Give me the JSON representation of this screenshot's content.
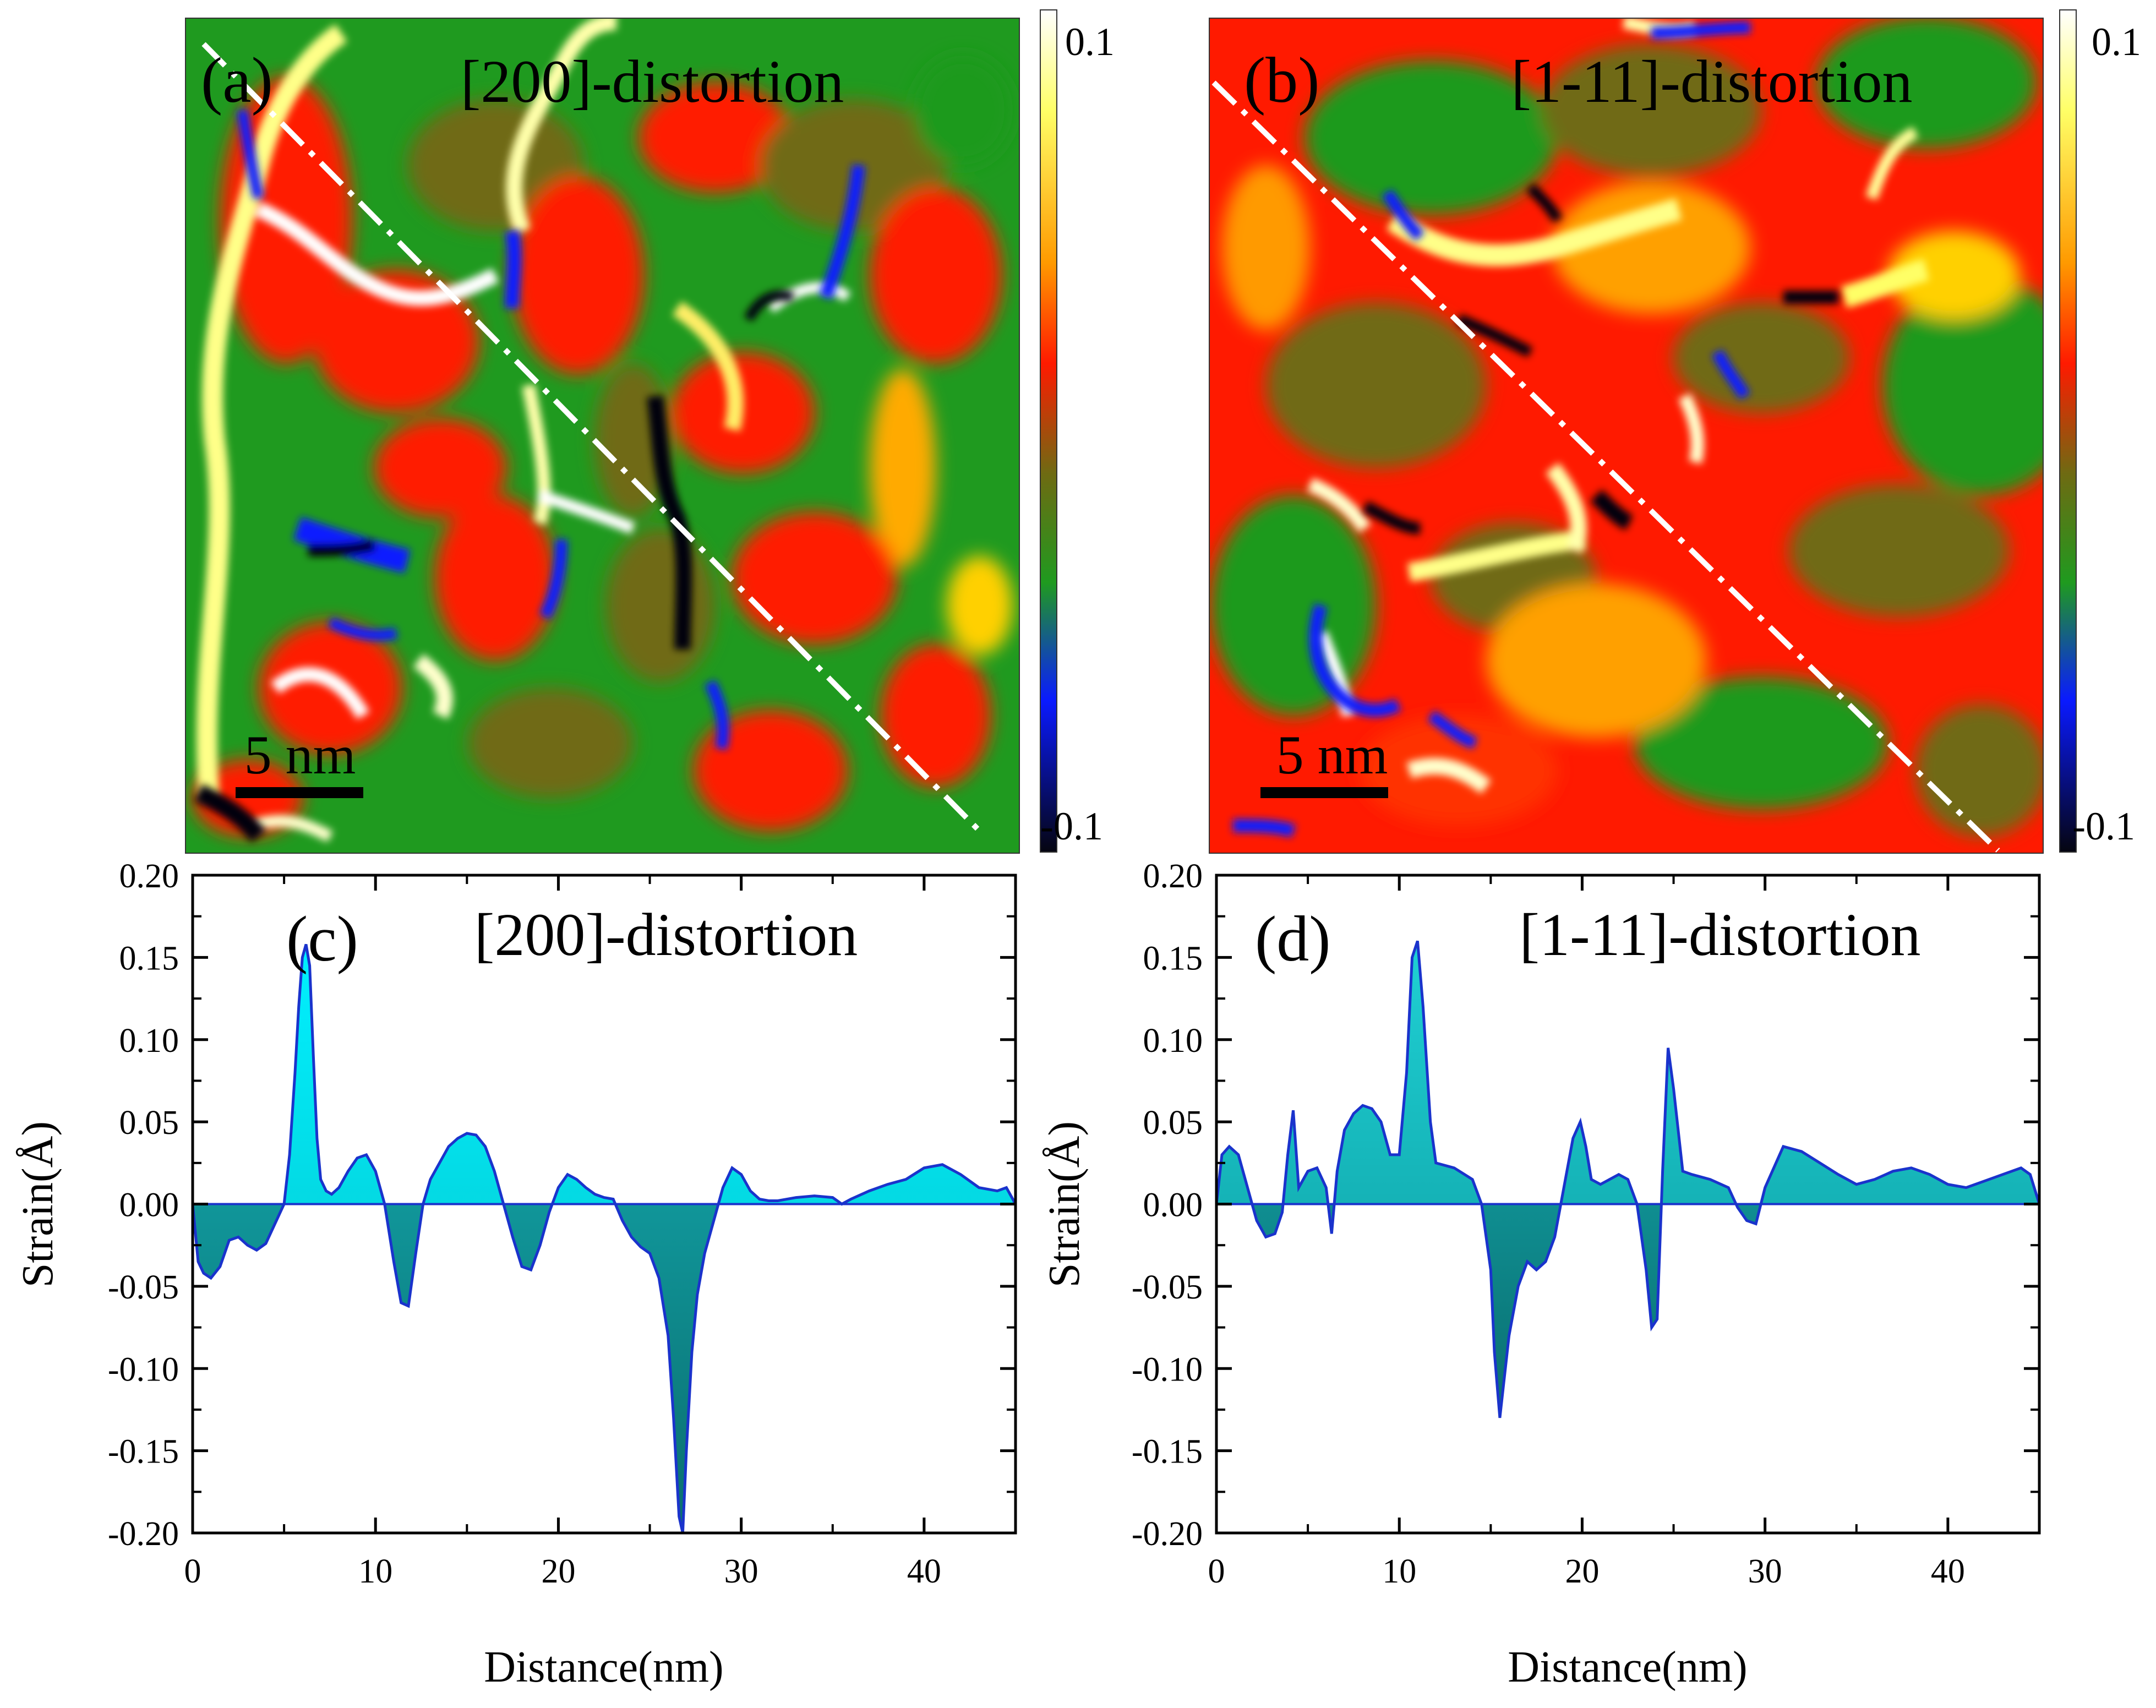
{
  "colors": {
    "map_green": "#1f9a1f",
    "map_red": "#ff1a00",
    "map_olive": "#6f6a12",
    "map_yellow": "#ffff66",
    "map_white": "#ffffff",
    "map_blue": "#0a1aff",
    "map_black": "#050510",
    "fill_cyan": "#00e0e6",
    "fill_teal": "#0e8f8f",
    "line_blue": "#1a33cc",
    "dash_line": "#ffffff"
  },
  "maps": [
    {
      "panel_label": "(a)",
      "title": "[200]-distortion",
      "scale_bar_label": "5 nm",
      "colorbar_max_label": "0.1",
      "colorbar_min_label": "-0.1"
    },
    {
      "panel_label": "(b)",
      "title": "[1-11]-distortion",
      "scale_bar_label": "5 nm",
      "colorbar_max_label": "0.1",
      "colorbar_min_label": "-0.1"
    }
  ],
  "chart_data": [
    {
      "type": "area",
      "panel_label": "(c)",
      "title": "[200]-distortion",
      "xlabel": "Distance(nm)",
      "ylabel": "Strain(Å)",
      "xlim": [
        0,
        45
      ],
      "ylim": [
        -0.2,
        0.2
      ],
      "xticks": [
        0,
        10,
        20,
        30,
        40
      ],
      "xtick_labels": [
        "0",
        "10",
        "20",
        "30",
        "40"
      ],
      "yticks": [
        -0.2,
        -0.15,
        -0.1,
        -0.05,
        0,
        0.05,
        0.1,
        0.15,
        0.2
      ],
      "ytick_labels": [
        "-0.20",
        "-0.15",
        "-0.10",
        "-0.05",
        "0.00",
        "0.05",
        "0.10",
        "0.15",
        "0.20"
      ],
      "x": [
        0,
        0.3,
        0.6,
        1.0,
        1.5,
        2.0,
        2.5,
        3.0,
        3.5,
        4.0,
        4.5,
        5.0,
        5.3,
        5.6,
        5.8,
        6.0,
        6.2,
        6.4,
        6.6,
        6.8,
        7.0,
        7.3,
        7.6,
        8.0,
        8.5,
        9.0,
        9.5,
        10.0,
        10.5,
        11.0,
        11.4,
        11.8,
        12.2,
        12.6,
        13.0,
        13.5,
        14.0,
        14.5,
        15.0,
        15.5,
        16.0,
        16.5,
        17.0,
        17.5,
        18.0,
        18.5,
        19.0,
        19.5,
        20.0,
        20.5,
        21.0,
        21.5,
        22.0,
        22.5,
        23.0,
        23.5,
        24.0,
        24.5,
        25.0,
        25.5,
        26.0,
        26.3,
        26.6,
        26.8,
        27.0,
        27.3,
        27.6,
        28.0,
        28.5,
        29.0,
        29.5,
        30.0,
        30.5,
        31.0,
        31.5,
        32.0,
        33.0,
        34.0,
        35.0,
        35.5,
        36.0,
        37.0,
        38.0,
        39.0,
        40.0,
        41.0,
        42.0,
        43.0,
        44.0,
        44.5,
        45.0
      ],
      "values": [
        0.0,
        -0.035,
        -0.042,
        -0.045,
        -0.038,
        -0.022,
        -0.02,
        -0.025,
        -0.028,
        -0.024,
        -0.012,
        0.0,
        0.03,
        0.08,
        0.12,
        0.15,
        0.158,
        0.145,
        0.09,
        0.04,
        0.015,
        0.008,
        0.006,
        0.01,
        0.02,
        0.028,
        0.03,
        0.02,
        0.0,
        -0.035,
        -0.06,
        -0.062,
        -0.03,
        0.0,
        0.015,
        0.025,
        0.035,
        0.04,
        0.043,
        0.042,
        0.035,
        0.02,
        0.0,
        -0.02,
        -0.038,
        -0.04,
        -0.025,
        -0.005,
        0.01,
        0.018,
        0.015,
        0.01,
        0.006,
        0.004,
        0.003,
        -0.01,
        -0.02,
        -0.026,
        -0.03,
        -0.045,
        -0.08,
        -0.13,
        -0.19,
        -0.2,
        -0.15,
        -0.09,
        -0.055,
        -0.03,
        -0.01,
        0.01,
        0.022,
        0.018,
        0.008,
        0.003,
        0.002,
        0.002,
        0.004,
        0.005,
        0.004,
        0.0,
        0.003,
        0.008,
        0.012,
        0.015,
        0.022,
        0.024,
        0.018,
        0.01,
        0.008,
        0.01,
        0.0
      ]
    },
    {
      "type": "area",
      "panel_label": "(d)",
      "title": "[1-11]-distortion",
      "xlabel": "Distance(nm)",
      "ylabel": "Strain(Å)",
      "xlim": [
        0,
        45
      ],
      "ylim": [
        -0.2,
        0.2
      ],
      "xticks": [
        0,
        10,
        20,
        30,
        40
      ],
      "xtick_labels": [
        "0",
        "10",
        "20",
        "30",
        "40"
      ],
      "yticks": [
        -0.2,
        -0.15,
        -0.1,
        -0.05,
        0,
        0.05,
        0.1,
        0.15,
        0.2
      ],
      "ytick_labels": [
        "-0.20",
        "-0.15",
        "-0.10",
        "-0.05",
        "0.00",
        "0.05",
        "0.10",
        "0.15",
        "0.20"
      ],
      "x": [
        0,
        0.3,
        0.7,
        1.2,
        1.7,
        2.2,
        2.7,
        3.2,
        3.6,
        3.9,
        4.2,
        4.5,
        5.0,
        5.5,
        6.0,
        6.3,
        6.6,
        7.0,
        7.5,
        8.0,
        8.5,
        9.0,
        9.5,
        10.0,
        10.4,
        10.7,
        11.0,
        11.3,
        11.7,
        12.0,
        13.0,
        14.0,
        14.5,
        15.0,
        15.2,
        15.5,
        16.0,
        16.5,
        17.0,
        17.5,
        18.0,
        18.5,
        19.0,
        19.5,
        19.9,
        20.2,
        20.5,
        21.0,
        21.5,
        22.0,
        22.5,
        23.0,
        23.5,
        23.8,
        24.1,
        24.4,
        24.7,
        25.0,
        25.5,
        26.0,
        27.0,
        28.0,
        28.5,
        29.0,
        29.5,
        30.0,
        31.0,
        32.0,
        33.0,
        34.0,
        35.0,
        36.0,
        37.0,
        38.0,
        39.0,
        40.0,
        41.0,
        42.0,
        43.0,
        44.0,
        44.5,
        45.0
      ],
      "values": [
        0.0,
        0.03,
        0.035,
        0.03,
        0.01,
        -0.01,
        -0.02,
        -0.018,
        -0.005,
        0.03,
        0.057,
        0.01,
        0.02,
        0.022,
        0.01,
        -0.018,
        0.02,
        0.045,
        0.055,
        0.06,
        0.058,
        0.05,
        0.03,
        0.03,
        0.08,
        0.15,
        0.16,
        0.12,
        0.05,
        0.025,
        0.022,
        0.015,
        0.0,
        -0.04,
        -0.09,
        -0.13,
        -0.08,
        -0.05,
        -0.035,
        -0.04,
        -0.035,
        -0.02,
        0.01,
        0.04,
        0.05,
        0.035,
        0.015,
        0.012,
        0.015,
        0.018,
        0.015,
        0.0,
        -0.04,
        -0.075,
        -0.07,
        0.02,
        0.095,
        0.07,
        0.02,
        0.018,
        0.015,
        0.01,
        -0.002,
        -0.01,
        -0.012,
        0.01,
        0.035,
        0.032,
        0.025,
        0.018,
        0.012,
        0.015,
        0.02,
        0.022,
        0.018,
        0.012,
        0.01,
        0.014,
        0.018,
        0.022,
        0.018,
        0.0
      ]
    }
  ]
}
